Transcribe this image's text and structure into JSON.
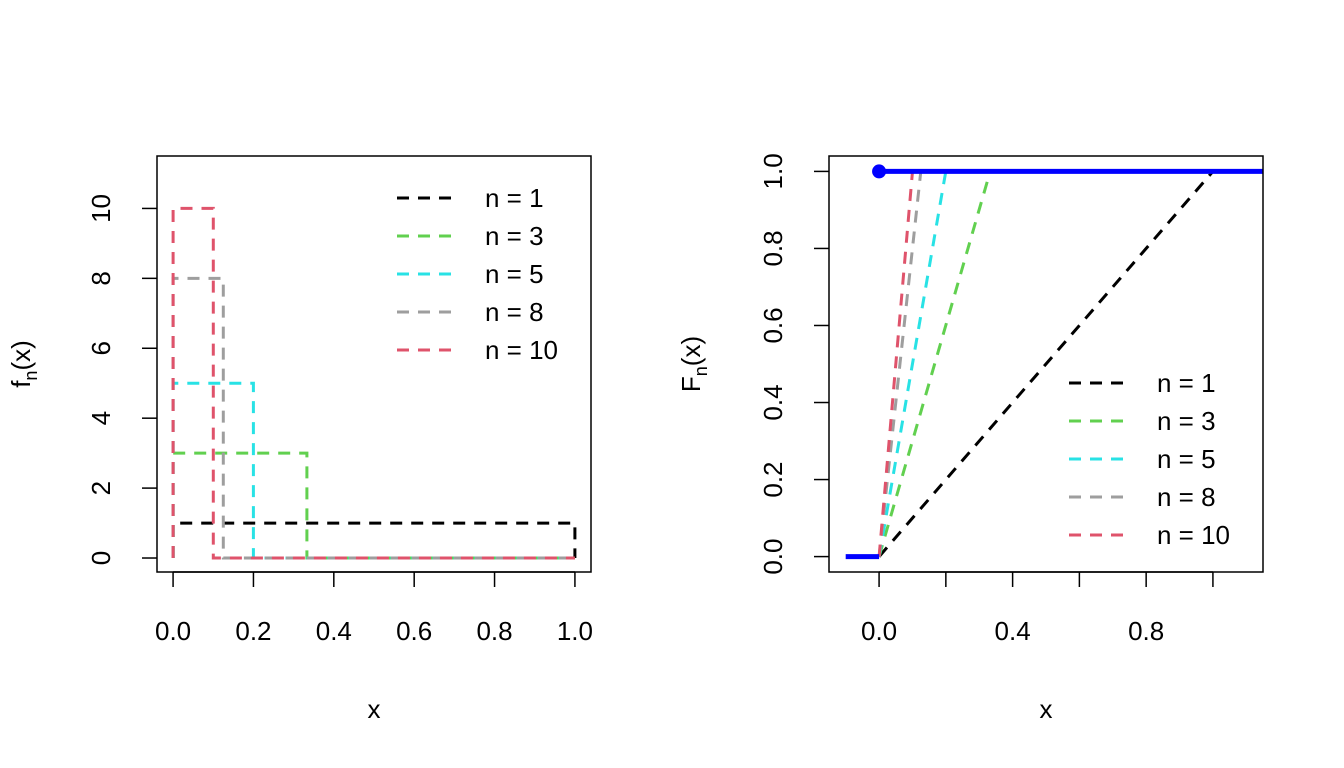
{
  "chart_data": [
    {
      "type": "line",
      "panel": "left",
      "xlabel": "x",
      "ylabel_main": "f",
      "ylabel_sub": "n",
      "ylabel_tail": "(x)",
      "xlim": [
        -0.04,
        1.04
      ],
      "ylim": [
        -0.4,
        11.5
      ],
      "xticks": [
        0.0,
        0.2,
        0.4,
        0.6,
        0.8,
        1.0
      ],
      "xtick_labels": [
        "0.0",
        "0.2",
        "0.4",
        "0.6",
        "0.8",
        "1.0"
      ],
      "yticks": [
        0,
        2,
        4,
        6,
        8,
        10
      ],
      "ytick_labels": [
        "0",
        "2",
        "4",
        "6",
        "8",
        "10"
      ],
      "legend_position": "top-right",
      "series": [
        {
          "name": "n = 1",
          "color": "#000000",
          "x": [
            0,
            0,
            1,
            1
          ],
          "y": [
            0,
            1,
            1,
            0
          ]
        },
        {
          "name": "n = 3",
          "color": "#61D04F",
          "x": [
            0,
            0,
            0.333,
            0.333,
            1
          ],
          "y": [
            0,
            3,
            3,
            0,
            0
          ]
        },
        {
          "name": "n = 5",
          "color": "#28E2E5",
          "x": [
            0,
            0,
            0.2,
            0.2,
            1
          ],
          "y": [
            0,
            5,
            5,
            0,
            0
          ]
        },
        {
          "name": "n = 8",
          "color": "#9E9E9E",
          "x": [
            0,
            0,
            0.125,
            0.125,
            1
          ],
          "y": [
            0,
            8,
            8,
            0,
            0
          ]
        },
        {
          "name": "n = 10",
          "color": "#DF536B",
          "x": [
            0,
            0,
            0.1,
            0.1,
            1
          ],
          "y": [
            0,
            10,
            10,
            0,
            0
          ]
        }
      ]
    },
    {
      "type": "line",
      "panel": "right",
      "xlabel": "x",
      "ylabel_main": "F",
      "ylabel_sub": "n",
      "ylabel_tail": "(x)",
      "xlim": [
        -0.15,
        1.15
      ],
      "ylim": [
        -0.04,
        1.04
      ],
      "xticks": [
        0.0,
        0.2,
        0.4,
        0.6,
        0.8,
        1.0
      ],
      "xtick_labels": [
        "0.0",
        "",
        "0.4",
        "",
        "0.8",
        ""
      ],
      "yticks": [
        0.0,
        0.2,
        0.4,
        0.6,
        0.8,
        1.0
      ],
      "ytick_labels": [
        "0.0",
        "0.2",
        "0.4",
        "0.6",
        "0.8",
        "1.0"
      ],
      "legend_position": "bottom-right",
      "series": [
        {
          "name": "n = 1",
          "color": "#000000",
          "x": [
            0,
            1
          ],
          "y": [
            0,
            1
          ]
        },
        {
          "name": "n = 3",
          "color": "#61D04F",
          "x": [
            0,
            0.333
          ],
          "y": [
            0,
            1
          ]
        },
        {
          "name": "n = 5",
          "color": "#28E2E5",
          "x": [
            0,
            0.2
          ],
          "y": [
            0,
            1
          ]
        },
        {
          "name": "n = 8",
          "color": "#9E9E9E",
          "x": [
            0,
            0.125
          ],
          "y": [
            0,
            1
          ]
        },
        {
          "name": "n = 10",
          "color": "#DF536B",
          "x": [
            0,
            0.1
          ],
          "y": [
            0,
            1
          ]
        }
      ],
      "limit_cdf": {
        "color": "#0000FF",
        "segments": [
          {
            "x": [
              -0.1,
              0
            ],
            "y": [
              0,
              0
            ]
          },
          {
            "x": [
              0,
              1.15
            ],
            "y": [
              1,
              1
            ]
          }
        ],
        "point": {
          "x": 0,
          "y": 1
        }
      }
    }
  ]
}
